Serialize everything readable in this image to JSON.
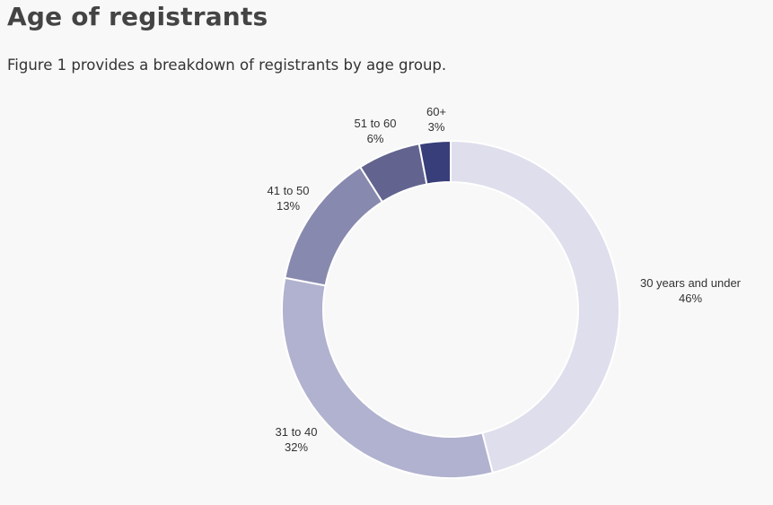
{
  "page": {
    "title": "Age of registrants",
    "intro": "Figure 1 provides a breakdown of registrants by age group."
  },
  "chart_data": {
    "type": "pie",
    "variant": "donut",
    "categories": [
      "30 years and under",
      "31 to 40",
      "41 to 50",
      "51 to 60",
      "60+"
    ],
    "values": [
      46,
      32,
      13,
      6,
      3
    ],
    "labels": [
      "46%",
      "32%",
      "13%",
      "6%",
      "3%"
    ],
    "colors": [
      "#dedeec",
      "#b1b2cf",
      "#8889ae",
      "#62648f",
      "#383e79"
    ],
    "start_angle_deg": 0,
    "direction": "clockwise"
  }
}
